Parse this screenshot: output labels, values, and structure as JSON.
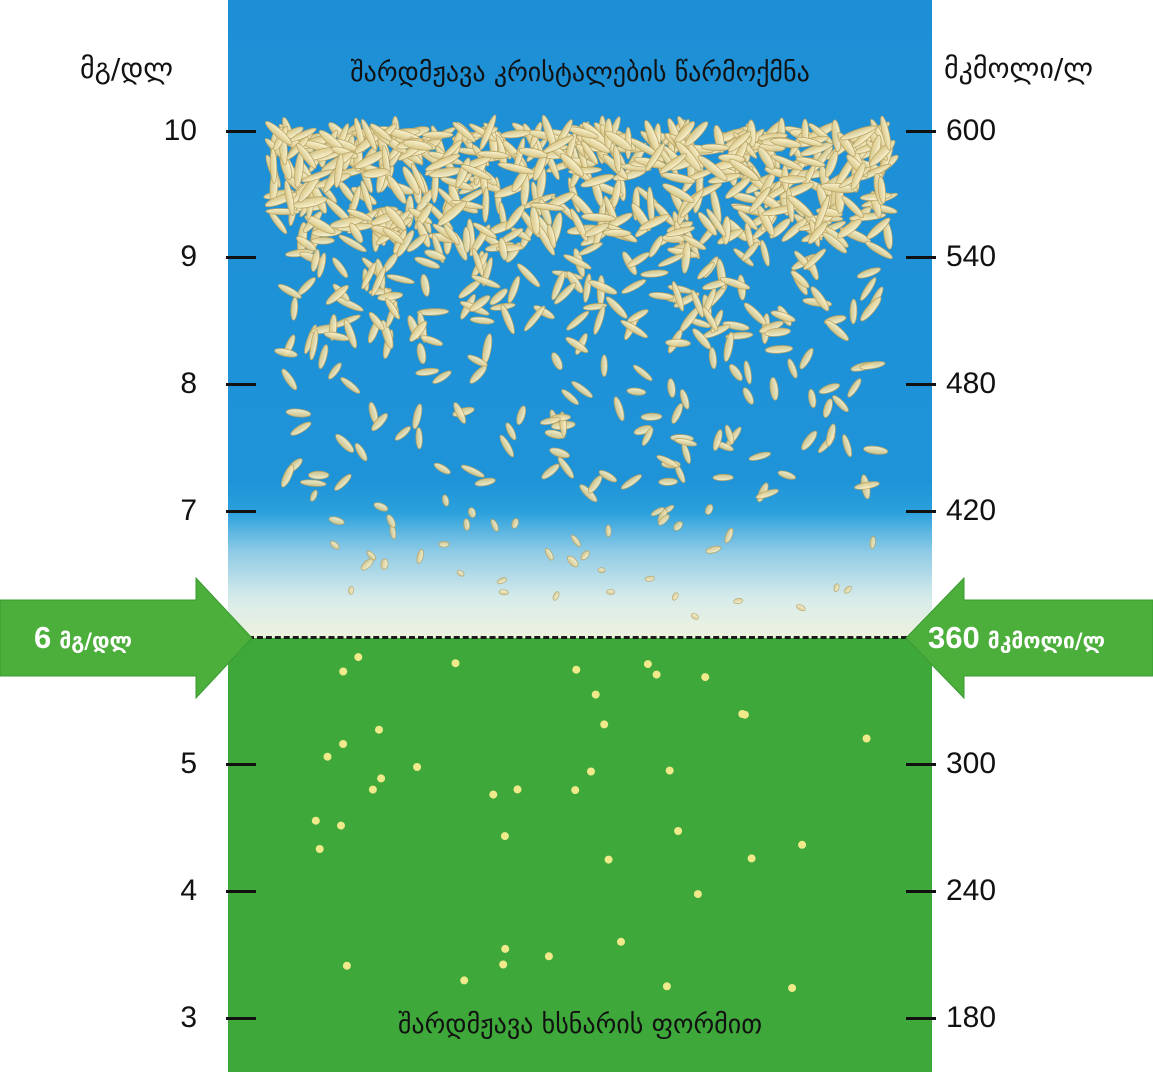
{
  "units": {
    "left": "მგ/დლ",
    "right": "მკმოლი/ლ"
  },
  "titles": {
    "top": "შარდმჟავა კრისტალების წარმოქმნა",
    "bottom": "შარდმჟავა ხსნარის ფორმით"
  },
  "scale": {
    "left_ticks": [
      "10",
      "9",
      "8",
      "7",
      "5",
      "4",
      "3"
    ],
    "right_ticks": [
      "600",
      "540",
      "480",
      "420",
      "300",
      "240",
      "180"
    ]
  },
  "threshold": {
    "left_value": "6",
    "left_unit": "მგ/დლ",
    "right_value": "360",
    "right_unit": "მკმოლი/ლ"
  },
  "colors": {
    "upper_zone": "#1d8fd6",
    "lower_zone": "#3ea83a",
    "arrow": "#4caf3c",
    "crystal": "#f2e6b4",
    "dissolved_dot": "#f0ea8a"
  },
  "icons": {
    "left_arrow": "arrow-right-icon",
    "right_arrow": "arrow-left-icon"
  }
}
